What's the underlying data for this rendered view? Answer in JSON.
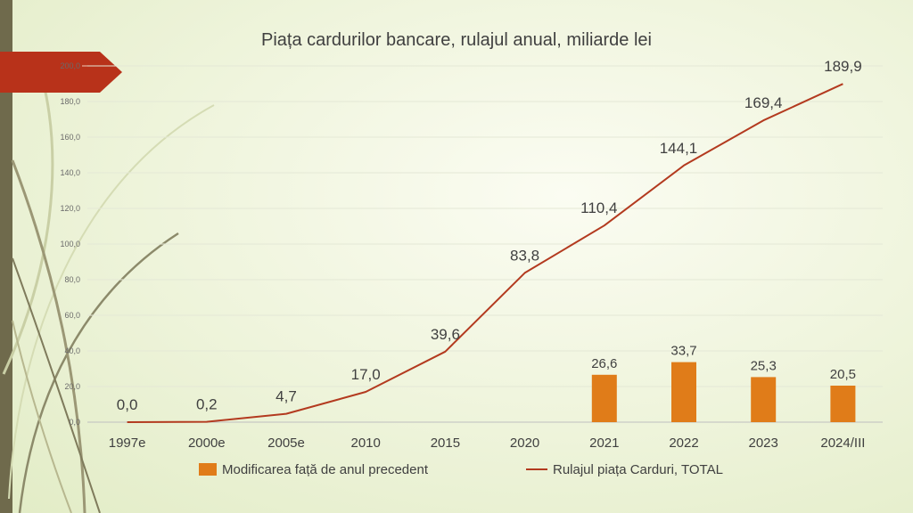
{
  "colors": {
    "bar": "#e07c19",
    "line": "#b33a1f",
    "arrow": "#b8321a",
    "text": "#404040",
    "axis": "#6a6a6a"
  },
  "chart_data": {
    "type": "bar+line",
    "title": "Piața cardurilor bancare, rulajul anual, miliarde lei",
    "categories": [
      "1997e",
      "2000e",
      "2005e",
      "2010",
      "2015",
      "2020",
      "2021",
      "2022",
      "2023",
      "2024/III"
    ],
    "ylim": [
      0,
      200
    ],
    "yticks": [
      0,
      20,
      40,
      60,
      80,
      100,
      120,
      140,
      160,
      180,
      200
    ],
    "ytick_labels": [
      "0,0",
      "20,0",
      "40,0",
      "60,0",
      "80,0",
      "100,0",
      "120,0",
      "140,0",
      "160,0",
      "180,0",
      "200,0"
    ],
    "series": [
      {
        "name": "Modificarea față de anul precedent",
        "kind": "bar",
        "values": [
          null,
          null,
          null,
          null,
          null,
          null,
          26.6,
          33.7,
          25.3,
          20.5
        ],
        "labels": [
          "",
          "",
          "",
          "",
          "",
          "",
          "26,6",
          "33,7",
          "25,3",
          "20,5"
        ]
      },
      {
        "name": "Rulajul piața Carduri, TOTAL",
        "kind": "line",
        "values": [
          0.0,
          0.2,
          4.7,
          17.0,
          39.6,
          83.8,
          110.4,
          144.1,
          169.4,
          189.9
        ],
        "labels": [
          "0,0",
          "0,2",
          "4,7",
          "17,0",
          "39,6",
          "83,8",
          "110,4",
          "144,1",
          "169,4",
          "189,9"
        ]
      }
    ],
    "legend_position": "bottom"
  }
}
